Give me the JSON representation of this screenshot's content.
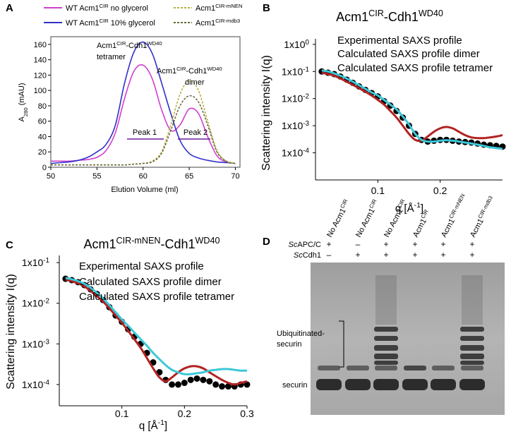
{
  "chart_data": [
    {
      "panel": "A",
      "type": "line",
      "frame": true,
      "legend_style": "swatch",
      "ylabel": [
        {
          "text": "A"
        },
        {
          "text": "280",
          "sub": true
        },
        {
          "text": " (mAU)"
        }
      ],
      "xlabel": [
        {
          "text": "Elution Volume (ml)"
        }
      ],
      "xlim": [
        50,
        70.5
      ],
      "ylim": [
        0,
        170
      ],
      "xticks": [
        50,
        55,
        60,
        65,
        70
      ],
      "yticks": [
        0,
        20,
        40,
        60,
        80,
        100,
        120,
        140,
        160
      ],
      "x": [
        50,
        51,
        52,
        53,
        54,
        55,
        56,
        57,
        58,
        59,
        60,
        61,
        62,
        63,
        64,
        65,
        66,
        67,
        68,
        69,
        70
      ],
      "series": [
        {
          "name": [
            {
              "text": "WT Acm1"
            },
            {
              "text": "CIR",
              "sup": true
            },
            {
              "text": " no glycerol"
            }
          ],
          "color": "#d040d0",
          "dash": false,
          "values": [
            8,
            8,
            8,
            9,
            10,
            13,
            22,
            45,
            90,
            125,
            133,
            115,
            75,
            48,
            55,
            76,
            70,
            40,
            15,
            7,
            5
          ]
        },
        {
          "name": [
            {
              "text": "WT Acm1"
            },
            {
              "text": "CIR",
              "sup": true
            },
            {
              "text": " 10% glycerol"
            }
          ],
          "color": "#3030c8",
          "dash": false,
          "values": [
            5,
            6,
            7,
            9,
            13,
            20,
            30,
            55,
            110,
            150,
            163,
            148,
            110,
            70,
            35,
            18,
            12,
            9,
            7,
            6,
            5
          ]
        },
        {
          "name": [
            {
              "text": "Acm1"
            },
            {
              "text": "CIR-mNEN",
              "sup": true
            }
          ],
          "color": "#b8b040",
          "dash": true,
          "values": [
            3,
            3,
            3,
            3,
            3,
            3,
            3,
            3,
            3,
            4,
            5,
            8,
            20,
            55,
            95,
            113,
            100,
            60,
            22,
            8,
            5
          ]
        },
        {
          "name": [
            {
              "text": "Acm1"
            },
            {
              "text": "CIR-mdb3",
              "sup": true
            }
          ],
          "color": "#6b6b3a",
          "dash": true,
          "values": [
            3,
            3,
            3,
            3,
            3,
            3,
            3,
            3,
            3,
            4,
            5,
            7,
            18,
            48,
            80,
            93,
            85,
            55,
            20,
            8,
            5
          ]
        }
      ],
      "annotations": [
        [
          {
            "text": "Acm1"
          },
          {
            "text": "CIR",
            "sup": true
          },
          {
            "text": "-Cdh1"
          },
          {
            "text": "WD40",
            "sup": true
          }
        ],
        [
          {
            "text": "tetramer"
          }
        ],
        [
          {
            "text": "Acm1"
          },
          {
            "text": "CIR",
            "sup": true
          },
          {
            "text": "-Cdh1"
          },
          {
            "text": "WD40",
            "sup": true
          }
        ],
        [
          {
            "text": "dimer"
          }
        ],
        [
          {
            "text": "Peak 1"
          }
        ],
        [
          {
            "text": "Peak 2"
          }
        ]
      ]
    },
    {
      "panel": "B",
      "type": "line",
      "frame": false,
      "log_y": true,
      "legend_style": "colored-text",
      "title": [
        {
          "text": "Acm1"
        },
        {
          "text": "CIR",
          "sup": true
        },
        {
          "text": "-Cdh1"
        },
        {
          "text": "WD40",
          "sup": true
        }
      ],
      "ylabel": [
        {
          "text": "Scattering intensity I(q)"
        }
      ],
      "xlabel": [
        {
          "text": "q [Å"
        },
        {
          "text": "-1",
          "sup": true
        },
        {
          "text": "]"
        }
      ],
      "xlim": [
        0,
        0.3
      ],
      "ylim": [
        1e-05,
        1.6
      ],
      "xticks": [
        0.1,
        0.2
      ],
      "yticks": [
        {
          "value": 0.0001,
          "label": "1x10",
          "exponent": "-4"
        },
        {
          "value": 0.001,
          "label": "1x10",
          "exponent": "-3"
        },
        {
          "value": 0.01,
          "label": "1x10",
          "exponent": "-2"
        },
        {
          "value": 0.1,
          "label": "1x10",
          "exponent": "-1"
        },
        {
          "value": 1,
          "label": "1x10",
          "exponent": "0"
        }
      ],
      "x": [
        0.01,
        0.02,
        0.03,
        0.04,
        0.05,
        0.06,
        0.07,
        0.08,
        0.09,
        0.1,
        0.11,
        0.12,
        0.13,
        0.14,
        0.15,
        0.16,
        0.17,
        0.18,
        0.19,
        0.2,
        0.21,
        0.22,
        0.23,
        0.24,
        0.25,
        0.26,
        0.27,
        0.28,
        0.29,
        0.3
      ],
      "series": [
        {
          "name": "Experimental SAXS profile",
          "color": "#000000",
          "style": "points",
          "values": [
            0.1,
            0.09,
            0.08,
            0.065,
            0.05,
            0.038,
            0.028,
            0.021,
            0.016,
            0.012,
            0.008,
            0.0055,
            0.0035,
            0.002,
            0.001,
            0.0005,
            0.0003,
            0.00026,
            0.00028,
            0.0003,
            0.0003,
            0.00028,
            0.00026,
            0.00025,
            0.00024,
            0.00022,
            0.0002,
            0.00019,
            0.00018,
            0.00017
          ]
        },
        {
          "name": "Calculated SAXS profile dimer",
          "color": "#b22222",
          "style": "line",
          "values": [
            0.09,
            0.08,
            0.07,
            0.055,
            0.042,
            0.032,
            0.024,
            0.018,
            0.013,
            0.009,
            0.006,
            0.0035,
            0.002,
            0.001,
            0.0005,
            0.0003,
            0.00028,
            0.0004,
            0.0006,
            0.0008,
            0.0009,
            0.0008,
            0.0006,
            0.00045,
            0.00037,
            0.00035,
            0.00035,
            0.00037,
            0.0004,
            0.00045
          ]
        },
        {
          "name": "Calculated SAXS profile tetramer",
          "color": "#3cc8d8",
          "style": "line",
          "values": [
            0.11,
            0.1,
            0.085,
            0.07,
            0.055,
            0.042,
            0.031,
            0.023,
            0.017,
            0.013,
            0.009,
            0.006,
            0.004,
            0.0022,
            0.0011,
            0.0005,
            0.0003,
            0.00026,
            0.00026,
            0.00028,
            0.00029,
            0.00028,
            0.00026,
            0.00024,
            0.00022,
            0.0002,
            0.00018,
            0.00016,
            0.00015,
            0.00014
          ]
        }
      ]
    },
    {
      "panel": "C",
      "type": "line",
      "frame": false,
      "log_y": true,
      "legend_style": "colored-text",
      "title": [
        {
          "text": "Acm1"
        },
        {
          "text": "CIR-mNEN",
          "sup": true
        },
        {
          "text": "-Cdh1"
        },
        {
          "text": "WD40",
          "sup": true
        }
      ],
      "ylabel": [
        {
          "text": "Scattering intensity I(q)"
        }
      ],
      "xlabel": [
        {
          "text": "q [Å"
        },
        {
          "text": "-1",
          "sup": true
        },
        {
          "text": "]"
        }
      ],
      "xlim": [
        0,
        0.3
      ],
      "ylim": [
        3e-05,
        0.15
      ],
      "xticks": [
        0.1,
        0.2,
        0.3
      ],
      "yticks": [
        {
          "value": 0.0001,
          "label": "1x10",
          "exponent": "-4"
        },
        {
          "value": 0.001,
          "label": "1x10",
          "exponent": "-3"
        },
        {
          "value": 0.01,
          "label": "1x10",
          "exponent": "-2"
        },
        {
          "value": 0.1,
          "label": "1x10",
          "exponent": "-1"
        }
      ],
      "x": [
        0.01,
        0.02,
        0.03,
        0.04,
        0.05,
        0.06,
        0.07,
        0.08,
        0.09,
        0.1,
        0.11,
        0.12,
        0.13,
        0.14,
        0.15,
        0.16,
        0.17,
        0.18,
        0.19,
        0.2,
        0.21,
        0.22,
        0.23,
        0.24,
        0.25,
        0.26,
        0.27,
        0.28,
        0.29,
        0.3
      ],
      "series": [
        {
          "name": "Experimental SAXS profile",
          "color": "#000000",
          "style": "points",
          "values": [
            0.04,
            0.037,
            0.033,
            0.028,
            0.022,
            0.017,
            0.012,
            0.008,
            0.005,
            0.0035,
            0.0023,
            0.0015,
            0.001,
            0.0006,
            0.00035,
            0.0002,
            0.00013,
            0.0001,
            0.0001,
            0.00011,
            0.00013,
            0.00014,
            0.00013,
            0.00012,
            0.0001,
            9e-05,
            9e-05,
            9e-05,
            0.0001,
            0.0001
          ]
        },
        {
          "name": "Calculated SAXS profile dimer",
          "color": "#b22222",
          "style": "line",
          "values": [
            0.038,
            0.035,
            0.031,
            0.026,
            0.02,
            0.015,
            0.011,
            0.0075,
            0.005,
            0.0033,
            0.0021,
            0.0013,
            0.0008,
            0.00045,
            0.00025,
            0.00015,
            0.00012,
            0.00015,
            0.0002,
            0.00025,
            0.00028,
            0.00028,
            0.00025,
            0.0002,
            0.00016,
            0.00013,
            0.00011,
            0.0001,
            0.00011,
            0.00012
          ]
        },
        {
          "name": "Calculated SAXS profile tetramer",
          "color": "#3cc8d8",
          "style": "line",
          "values": [
            0.042,
            0.039,
            0.035,
            0.03,
            0.024,
            0.018,
            0.013,
            0.009,
            0.006,
            0.004,
            0.0028,
            0.0019,
            0.0013,
            0.0009,
            0.0006,
            0.00042,
            0.0003,
            0.00023,
            0.0002,
            0.00018,
            0.00018,
            0.00019,
            0.0002,
            0.00022,
            0.00023,
            0.00024,
            0.00024,
            0.00023,
            0.00022,
            0.00022
          ]
        }
      ]
    }
  ],
  "gel": {
    "panel": "D",
    "lanes": [
      [
        {
          "text": "No Acm1"
        },
        {
          "text": "CIR",
          "sup": true
        }
      ],
      [
        {
          "text": "No Acm1"
        },
        {
          "text": "CIR",
          "sup": true
        }
      ],
      [
        {
          "text": "No Acm1"
        },
        {
          "text": "CIR",
          "sup": true
        }
      ],
      [
        {
          "text": "Acm1"
        },
        {
          "text": "CIR",
          "sup": true
        }
      ],
      [
        {
          "text": "Acm1"
        },
        {
          "text": "CIR-mNEN",
          "sup": true
        }
      ],
      [
        {
          "text": "Acm1"
        },
        {
          "text": "CIR-mdb3",
          "sup": true
        }
      ]
    ],
    "rows": [
      {
        "label": [
          {
            "text": "Sc",
            "italic": true
          },
          {
            "text": "APC/C"
          }
        ],
        "marks": [
          "+",
          "–",
          "+",
          "+",
          "+",
          "+"
        ]
      },
      {
        "label": [
          {
            "text": "Sc",
            "italic": true
          },
          {
            "text": "Cdh1"
          }
        ],
        "marks": [
          "–",
          "+",
          "+",
          "+",
          "+",
          "+"
        ]
      }
    ],
    "ubiquitinated_label": [
      "Ubiquitinated-",
      "securin"
    ],
    "securin_label": "securin"
  }
}
